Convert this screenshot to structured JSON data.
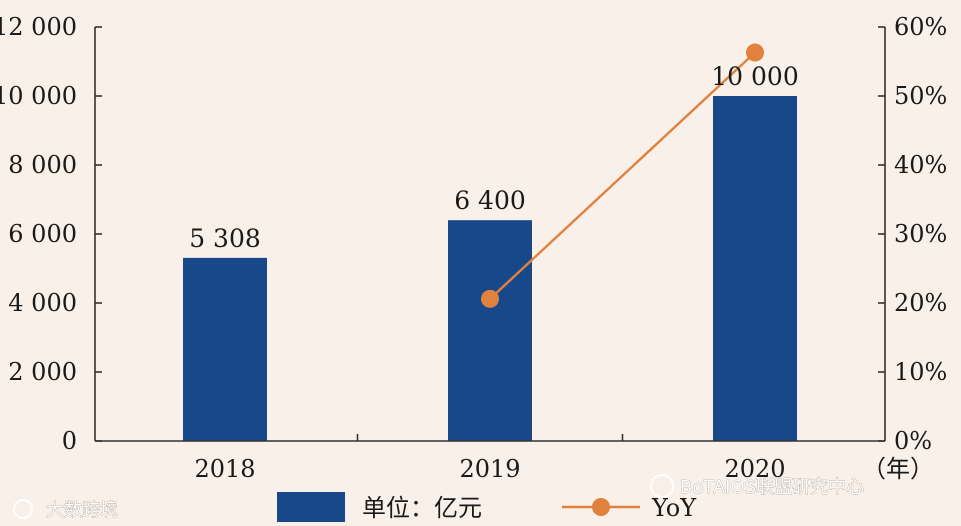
{
  "chart_data": {
    "type": "bar",
    "categories": [
      "2018",
      "2019",
      "2020"
    ],
    "series": [
      {
        "name": "单位：亿元",
        "kind": "bar",
        "axis": "left",
        "values": [
          5308,
          6400,
          10000
        ],
        "labels": [
          "5 308",
          "6 400",
          "10 000"
        ]
      },
      {
        "name": "YoY",
        "kind": "line",
        "axis": "right",
        "values": [
          null,
          20.6,
          56.3
        ]
      }
    ],
    "y_left": {
      "min": 0,
      "max": 12000,
      "step": 2000,
      "tick_labels": [
        "0",
        "2 000",
        "4 000",
        "6 000",
        "8 000",
        "10 000",
        "12 000"
      ]
    },
    "y_right": {
      "min": 0,
      "max": 60,
      "step": 10,
      "tick_labels": [
        "0%",
        "10%",
        "20%",
        "30%",
        "40%",
        "50%",
        "60%"
      ]
    },
    "x_unit_label": "（年）",
    "grid": false,
    "legend_position": "bottom",
    "colors": {
      "bar": "#17498a",
      "line": "#e0823d",
      "axis": "#333333",
      "background": "#f9f0e9"
    }
  },
  "watermarks": {
    "left": "大数跨境",
    "right": "BoTAIOS联盟研究中心"
  }
}
